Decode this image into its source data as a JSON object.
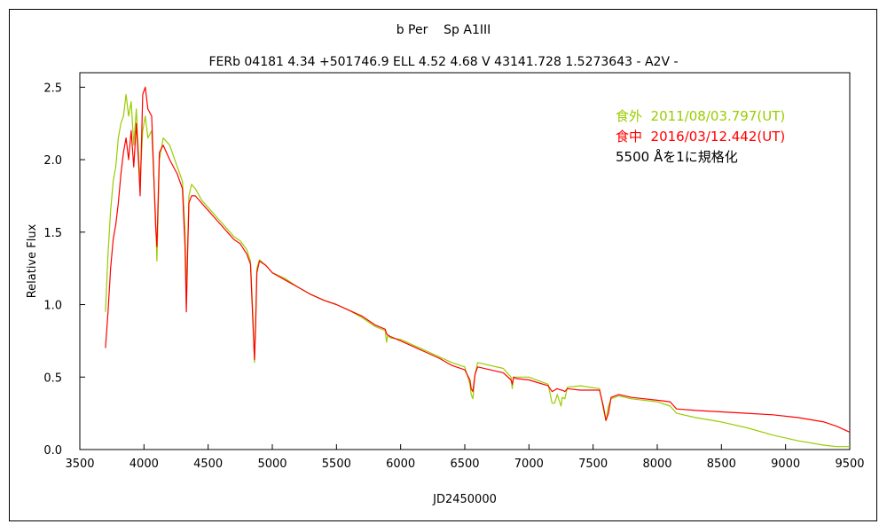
{
  "chart_data": {
    "type": "line",
    "title": "b Per    Sp A1III",
    "subtitle": "FERb 04181 4.34 +501746.9 ELL 4.52 4.68 V 43141.728 1.5273643 - A2V -",
    "xlabel": "JD2450000",
    "ylabel": "Relative Flux",
    "xlim": [
      3500,
      9500
    ],
    "ylim": [
      0.0,
      2.6
    ],
    "x_ticks": [
      "3500",
      "4000",
      "4500",
      "5000",
      "5500",
      "6000",
      "6500",
      "7000",
      "7500",
      "8000",
      "8500",
      "9000",
      "9500"
    ],
    "y_ticks": [
      "0.0",
      "0.5",
      "1.0",
      "1.5",
      "2.0",
      "2.5"
    ],
    "grid": false,
    "legend_position": "top-right",
    "note": "5500 Åを1に規格化",
    "series": [
      {
        "name": "食外  2011/08/03.797(UT)",
        "color": "#99cc00",
        "x": [
          3700,
          3720,
          3740,
          3760,
          3780,
          3800,
          3820,
          3840,
          3860,
          3880,
          3900,
          3920,
          3940,
          3960,
          3970,
          3990,
          4010,
          4030,
          4060,
          4090,
          4101,
          4120,
          4150,
          4200,
          4260,
          4300,
          4320,
          4330,
          4340,
          4350,
          4370,
          4400,
          4450,
          4500,
          4550,
          4600,
          4650,
          4700,
          4750,
          4800,
          4830,
          4850,
          4861,
          4870,
          4880,
          4900,
          4950,
          5000,
          5100,
          5200,
          5300,
          5400,
          5500,
          5600,
          5700,
          5800,
          5880,
          5890,
          5900,
          5920,
          6000,
          6100,
          6200,
          6300,
          6400,
          6500,
          6540,
          6550,
          6563,
          6580,
          6600,
          6800,
          6860,
          6870,
          6880,
          6900,
          7000,
          7150,
          7180,
          7200,
          7220,
          7250,
          7260,
          7280,
          7300,
          7400,
          7550,
          7580,
          7600,
          7620,
          7640,
          7700,
          7800,
          8000,
          8100,
          8150,
          8300,
          8500,
          8700,
          8900,
          9100,
          9300,
          9400,
          9500
        ],
        "y": [
          0.95,
          1.35,
          1.65,
          1.85,
          1.95,
          2.15,
          2.25,
          2.3,
          2.45,
          2.3,
          2.4,
          2.1,
          2.35,
          2.0,
          1.85,
          2.2,
          2.3,
          2.15,
          2.2,
          1.6,
          1.3,
          2.0,
          2.15,
          2.1,
          1.95,
          1.85,
          1.5,
          1.1,
          1.4,
          1.75,
          1.83,
          1.8,
          1.72,
          1.67,
          1.62,
          1.57,
          1.52,
          1.47,
          1.44,
          1.38,
          1.3,
          0.9,
          0.6,
          0.9,
          1.25,
          1.31,
          1.27,
          1.22,
          1.18,
          1.12,
          1.07,
          1.03,
          1.0,
          0.96,
          0.91,
          0.85,
          0.82,
          0.74,
          0.79,
          0.77,
          0.76,
          0.72,
          0.68,
          0.64,
          0.6,
          0.57,
          0.45,
          0.38,
          0.35,
          0.52,
          0.6,
          0.56,
          0.5,
          0.42,
          0.5,
          0.5,
          0.5,
          0.45,
          0.32,
          0.32,
          0.38,
          0.3,
          0.36,
          0.35,
          0.43,
          0.44,
          0.42,
          0.28,
          0.2,
          0.3,
          0.35,
          0.37,
          0.35,
          0.33,
          0.3,
          0.25,
          0.22,
          0.19,
          0.15,
          0.1,
          0.06,
          0.03,
          0.02,
          0.02
        ]
      },
      {
        "name": "食中  2016/03/12.442(UT)",
        "color": "#ff0000",
        "x": [
          3700,
          3720,
          3740,
          3760,
          3780,
          3800,
          3820,
          3840,
          3860,
          3880,
          3900,
          3920,
          3940,
          3960,
          3970,
          3990,
          4010,
          4030,
          4060,
          4090,
          4101,
          4120,
          4150,
          4200,
          4260,
          4300,
          4320,
          4330,
          4340,
          4350,
          4370,
          4400,
          4450,
          4500,
          4550,
          4600,
          4650,
          4700,
          4750,
          4800,
          4830,
          4850,
          4861,
          4870,
          4880,
          4900,
          4950,
          5000,
          5100,
          5200,
          5300,
          5400,
          5500,
          5600,
          5700,
          5800,
          5880,
          5890,
          5900,
          5920,
          6000,
          6100,
          6200,
          6300,
          6400,
          6500,
          6540,
          6550,
          6563,
          6580,
          6600,
          6800,
          6860,
          6870,
          6880,
          6900,
          7000,
          7150,
          7180,
          7200,
          7220,
          7250,
          7260,
          7280,
          7300,
          7400,
          7550,
          7580,
          7600,
          7620,
          7640,
          7700,
          7800,
          8000,
          8100,
          8150,
          8300,
          8500,
          8700,
          8900,
          9100,
          9300,
          9400,
          9500
        ],
        "y": [
          0.7,
          0.95,
          1.25,
          1.45,
          1.55,
          1.7,
          1.9,
          2.05,
          2.15,
          2.0,
          2.2,
          1.95,
          2.25,
          1.95,
          1.75,
          2.45,
          2.5,
          2.35,
          2.3,
          1.55,
          1.4,
          2.05,
          2.1,
          2.0,
          1.9,
          1.8,
          1.4,
          0.95,
          1.35,
          1.7,
          1.75,
          1.75,
          1.7,
          1.65,
          1.6,
          1.55,
          1.5,
          1.45,
          1.42,
          1.35,
          1.28,
          0.85,
          0.62,
          0.85,
          1.22,
          1.3,
          1.27,
          1.22,
          1.17,
          1.12,
          1.07,
          1.03,
          1.0,
          0.96,
          0.92,
          0.86,
          0.83,
          0.8,
          0.79,
          0.78,
          0.75,
          0.71,
          0.67,
          0.63,
          0.58,
          0.55,
          0.48,
          0.42,
          0.4,
          0.52,
          0.57,
          0.53,
          0.48,
          0.45,
          0.5,
          0.49,
          0.48,
          0.44,
          0.4,
          0.41,
          0.42,
          0.41,
          0.41,
          0.4,
          0.42,
          0.41,
          0.41,
          0.3,
          0.2,
          0.25,
          0.36,
          0.38,
          0.36,
          0.34,
          0.33,
          0.28,
          0.27,
          0.26,
          0.25,
          0.24,
          0.22,
          0.19,
          0.16,
          0.12
        ]
      }
    ]
  }
}
